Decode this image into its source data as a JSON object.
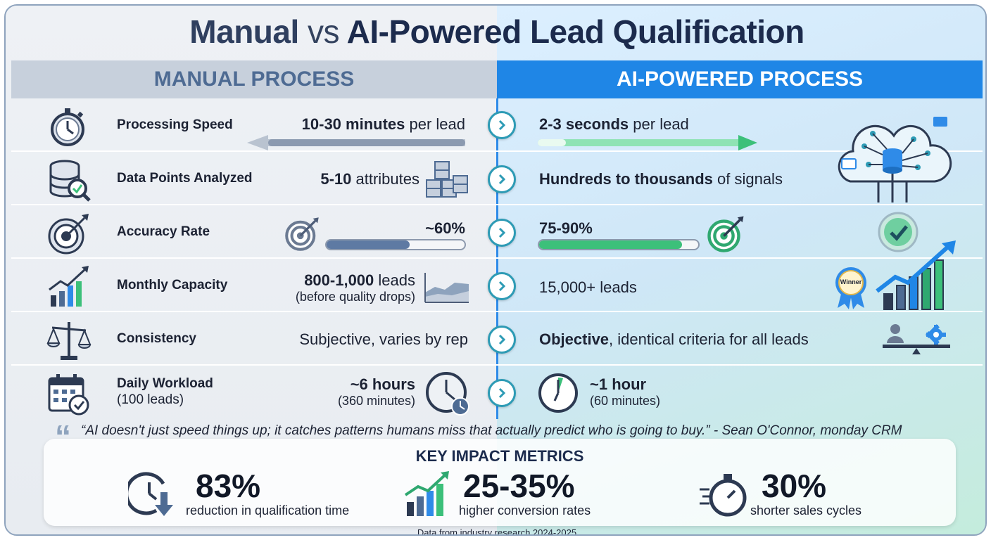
{
  "title": {
    "part1": "Manual",
    "part2": "vs",
    "part3": "AI-Powered Lead Qualification"
  },
  "headers": {
    "manual": "MANUAL PROCESS",
    "ai": "AI-POWERED PROCESS"
  },
  "rows": [
    {
      "label": "Processing Speed",
      "manual_bold": "10-30 minutes",
      "manual_rest": " per lead",
      "ai_bold": "2-3 seconds",
      "ai_rest": " per lead",
      "icon": "stopwatch-icon"
    },
    {
      "label": "Data Points Analyzed",
      "manual_bold": "5-10",
      "manual_rest": " attributes",
      "ai_bold": "Hundreds to thousands",
      "ai_rest": " of signals",
      "icon": "database-search-icon"
    },
    {
      "label": "Accuracy Rate",
      "manual_value": "~60%",
      "manual_fraction": 0.6,
      "ai_value": "75-90%",
      "ai_fraction": 0.9,
      "icon": "target-icon"
    },
    {
      "label": "Monthly Capacity",
      "manual_bold": "800-1,000",
      "manual_rest": " leads",
      "manual_sub": "(before quality drops)",
      "ai_value": "15,000+ leads",
      "badge": "Winner",
      "icon": "growth-chart-icon"
    },
    {
      "label": "Consistency",
      "manual_value": "Subjective, varies by rep",
      "ai_bold": "Objective",
      "ai_rest": ", identical criteria for all leads",
      "icon": "scales-icon"
    },
    {
      "label": "Daily Workload",
      "label_sub": "(100 leads)",
      "manual_value": "~6 hours",
      "manual_sub": "(360 minutes)",
      "ai_value": "~1 hour",
      "ai_sub": "(60 minutes)",
      "icon": "calendar-icon"
    }
  ],
  "quote": "“AI doesn't just speed things up; it catches patterns humans miss that actually predict who is going to buy.” - Sean O'Connor, monday CRM",
  "metrics": {
    "title": "KEY IMPACT METRICS",
    "items": [
      {
        "value": "83%",
        "desc": "reduction in qualification time",
        "icon": "clock-down-icon"
      },
      {
        "value": "25-35%",
        "desc": "higher conversion rates",
        "icon": "growth-chart-icon"
      },
      {
        "value": "30%",
        "desc": "shorter sales cycles",
        "icon": "fast-stopwatch-icon"
      }
    ]
  },
  "footer": "Data from industry research 2024-2025",
  "colors": {
    "ai_blue": "#1f86e6",
    "manual_slate": "#4e6b93",
    "green": "#3cc07a",
    "chevron": "#2d9bb5"
  }
}
